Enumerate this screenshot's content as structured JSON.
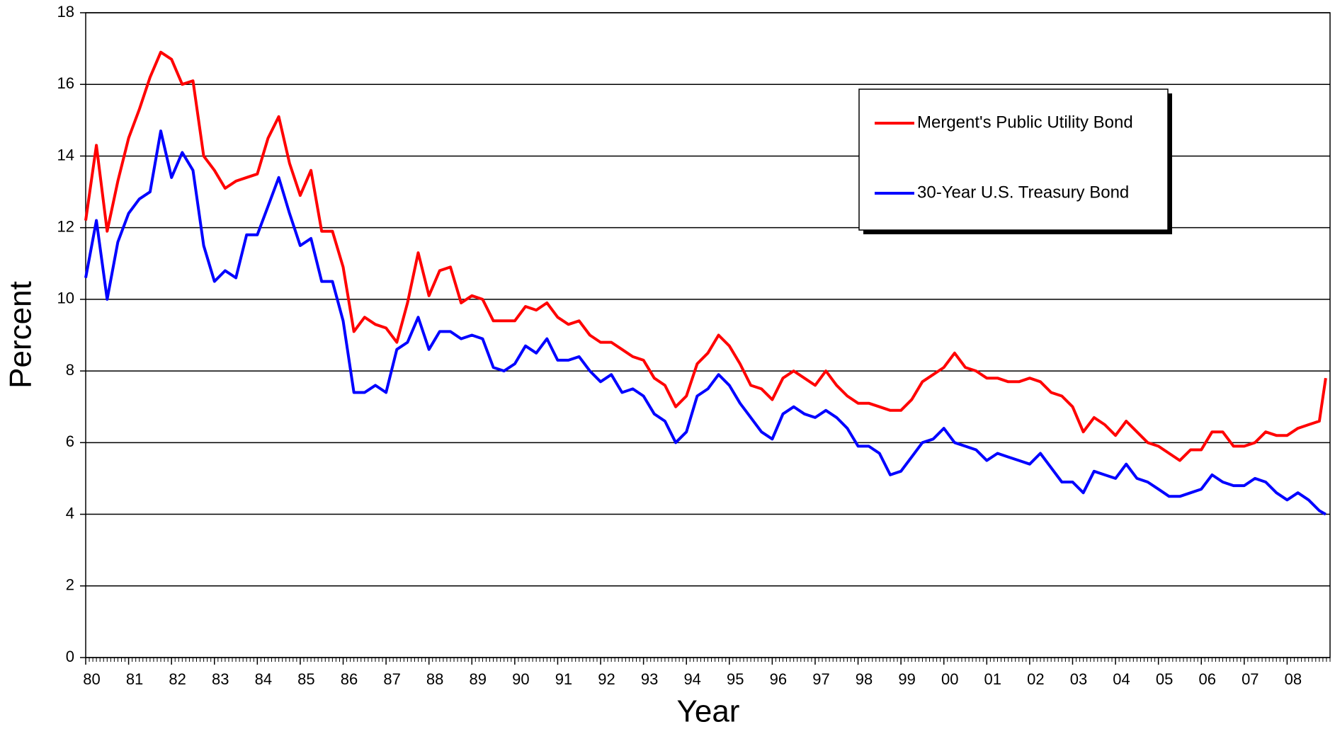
{
  "chart_data": {
    "type": "line",
    "xlabel": "Year",
    "ylabel": "Percent",
    "xlim": [
      1980,
      2009
    ],
    "ylim": [
      0,
      18
    ],
    "xticks": [
      {
        "value": 1980,
        "label": "80"
      },
      {
        "value": 1981,
        "label": "81"
      },
      {
        "value": 1982,
        "label": "82"
      },
      {
        "value": 1983,
        "label": "83"
      },
      {
        "value": 1984,
        "label": "84"
      },
      {
        "value": 1985,
        "label": "85"
      },
      {
        "value": 1986,
        "label": "86"
      },
      {
        "value": 1987,
        "label": "87"
      },
      {
        "value": 1988,
        "label": "88"
      },
      {
        "value": 1989,
        "label": "89"
      },
      {
        "value": 1990,
        "label": "90"
      },
      {
        "value": 1991,
        "label": "91"
      },
      {
        "value": 1992,
        "label": "92"
      },
      {
        "value": 1993,
        "label": "93"
      },
      {
        "value": 1994,
        "label": "94"
      },
      {
        "value": 1995,
        "label": "95"
      },
      {
        "value": 1996,
        "label": "96"
      },
      {
        "value": 1997,
        "label": "97"
      },
      {
        "value": 1998,
        "label": "98"
      },
      {
        "value": 1999,
        "label": "99"
      },
      {
        "value": 2000,
        "label": "00"
      },
      {
        "value": 2001,
        "label": "01"
      },
      {
        "value": 2002,
        "label": "02"
      },
      {
        "value": 2003,
        "label": "03"
      },
      {
        "value": 2004,
        "label": "04"
      },
      {
        "value": 2005,
        "label": "05"
      },
      {
        "value": 2006,
        "label": "06"
      },
      {
        "value": 2007,
        "label": "07"
      },
      {
        "value": 2008,
        "label": "08"
      }
    ],
    "yticks": [
      0,
      2,
      4,
      6,
      8,
      10,
      12,
      14,
      16,
      18
    ],
    "grid": true,
    "legend": "upper right",
    "x": [
      1980,
      1980.25,
      1980.5,
      1980.75,
      1981,
      1981.25,
      1981.5,
      1981.75,
      1982,
      1982.25,
      1982.5,
      1982.75,
      1983,
      1983.25,
      1983.5,
      1983.75,
      1984,
      1984.25,
      1984.5,
      1984.75,
      1985,
      1985.25,
      1985.5,
      1985.75,
      1986,
      1986.25,
      1986.5,
      1986.75,
      1987,
      1987.25,
      1987.5,
      1987.75,
      1988,
      1988.25,
      1988.5,
      1988.75,
      1989,
      1989.25,
      1989.5,
      1989.75,
      1990,
      1990.25,
      1990.5,
      1990.75,
      1991,
      1991.25,
      1991.5,
      1991.75,
      1992,
      1992.25,
      1992.5,
      1992.75,
      1993,
      1993.25,
      1993.5,
      1993.75,
      1994,
      1994.25,
      1994.5,
      1994.75,
      1995,
      1995.25,
      1995.5,
      1995.75,
      1996,
      1996.25,
      1996.5,
      1996.75,
      1997,
      1997.25,
      1997.5,
      1997.75,
      1998,
      1998.25,
      1998.5,
      1998.75,
      1999,
      1999.25,
      1999.5,
      1999.75,
      2000,
      2000.25,
      2000.5,
      2000.75,
      2001,
      2001.25,
      2001.5,
      2001.75,
      2002,
      2002.25,
      2002.5,
      2002.75,
      2003,
      2003.25,
      2003.5,
      2003.75,
      2004,
      2004.25,
      2004.5,
      2004.75,
      2005,
      2005.25,
      2005.5,
      2005.75,
      2006,
      2006.25,
      2006.5,
      2006.75,
      2007,
      2007.25,
      2007.5,
      2007.75,
      2008,
      2008.25,
      2008.5,
      2008.75,
      2008.9
    ],
    "series": [
      {
        "name": "Mergent's Public Utility Bond",
        "color": "#ff0000",
        "values": [
          12.2,
          14.3,
          11.9,
          13.3,
          14.5,
          15.3,
          16.2,
          16.9,
          16.7,
          16.0,
          16.1,
          14.0,
          13.6,
          13.1,
          13.3,
          13.4,
          13.5,
          14.5,
          15.1,
          13.8,
          12.9,
          13.6,
          11.9,
          11.9,
          10.9,
          9.1,
          9.5,
          9.3,
          9.2,
          8.8,
          9.9,
          11.3,
          10.1,
          10.8,
          10.9,
          9.9,
          10.1,
          10.0,
          9.4,
          9.4,
          9.4,
          9.8,
          9.7,
          9.9,
          9.5,
          9.3,
          9.4,
          9.0,
          8.8,
          8.8,
          8.6,
          8.4,
          8.3,
          7.8,
          7.6,
          7.0,
          7.3,
          8.2,
          8.5,
          9.0,
          8.7,
          8.2,
          7.6,
          7.5,
          7.2,
          7.8,
          8.0,
          7.8,
          7.6,
          8.0,
          7.6,
          7.3,
          7.1,
          7.1,
          7.0,
          6.9,
          6.9,
          7.2,
          7.7,
          7.9,
          8.1,
          8.5,
          8.1,
          8.0,
          7.8,
          7.8,
          7.7,
          7.7,
          7.8,
          7.7,
          7.4,
          7.3,
          7.0,
          6.3,
          6.7,
          6.5,
          6.2,
          6.6,
          6.3,
          6.0,
          5.9,
          5.7,
          5.5,
          5.8,
          5.8,
          6.3,
          6.3,
          5.9,
          5.9,
          6.0,
          6.3,
          6.2,
          6.2,
          6.4,
          6.5,
          6.6,
          7.8
        ]
      },
      {
        "name": "30-Year U.S. Treasury Bond",
        "color": "#0000ff",
        "values": [
          10.6,
          12.2,
          10.0,
          11.6,
          12.4,
          12.8,
          13.0,
          14.7,
          13.4,
          14.1,
          13.6,
          11.5,
          10.5,
          10.8,
          10.6,
          11.8,
          11.8,
          12.6,
          13.4,
          12.4,
          11.5,
          11.7,
          10.5,
          10.5,
          9.4,
          7.4,
          7.4,
          7.6,
          7.4,
          8.6,
          8.8,
          9.5,
          8.6,
          9.1,
          9.1,
          8.9,
          9.0,
          8.9,
          8.1,
          8.0,
          8.2,
          8.7,
          8.5,
          8.9,
          8.3,
          8.3,
          8.4,
          8.0,
          7.7,
          7.9,
          7.4,
          7.5,
          7.3,
          6.8,
          6.6,
          6.0,
          6.3,
          7.3,
          7.5,
          7.9,
          7.6,
          7.1,
          6.7,
          6.3,
          6.1,
          6.8,
          7.0,
          6.8,
          6.7,
          6.9,
          6.7,
          6.4,
          5.9,
          5.9,
          5.7,
          5.1,
          5.2,
          5.6,
          6.0,
          6.1,
          6.4,
          6.0,
          5.9,
          5.8,
          5.5,
          5.7,
          5.6,
          5.5,
          5.4,
          5.7,
          5.3,
          4.9,
          4.9,
          4.6,
          5.2,
          5.1,
          5.0,
          5.4,
          5.0,
          4.9,
          4.7,
          4.5,
          4.5,
          4.6,
          4.7,
          5.1,
          4.9,
          4.8,
          4.8,
          5.0,
          4.9,
          4.6,
          4.4,
          4.6,
          4.4,
          4.1,
          4.0
        ]
      }
    ]
  }
}
